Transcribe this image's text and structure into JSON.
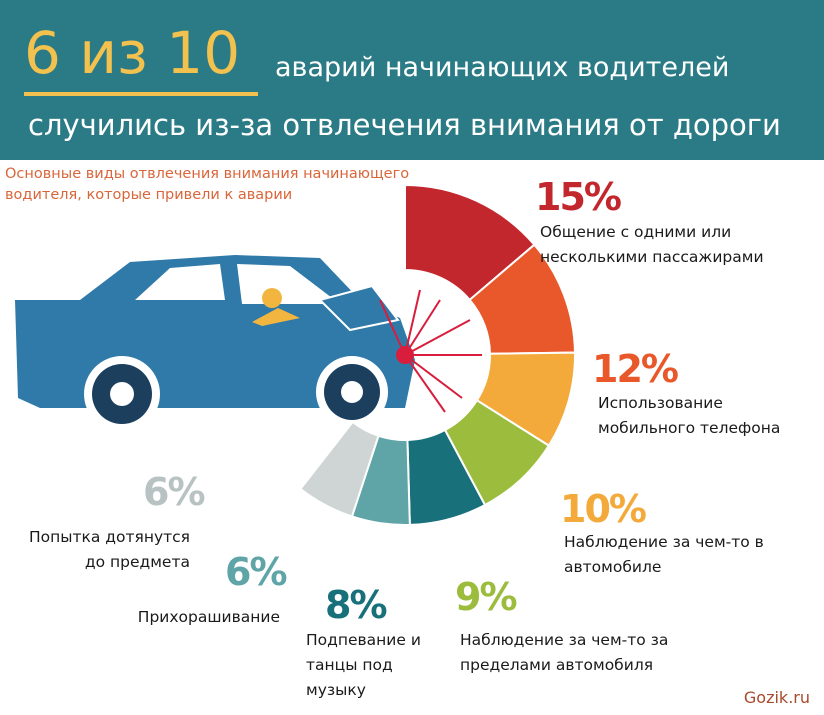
{
  "header": {
    "big_number": "6 из 10",
    "line1": "аварий начинающих водителей",
    "line2": "случились из-за отвлечения внимания от дороги"
  },
  "subtitle": "Основные виды отвлечения внимания начинающего водителя, которые привели к аварии",
  "watermark": "Gozik.ru",
  "chart_data": {
    "type": "pie",
    "title": "6 из 10 аварий начинающих водителей случились из-за отвлечения внимания от дороги",
    "categories": [
      [
        "Общение с одними или",
        "несколькими пассажирами"
      ],
      [
        "Использование",
        "мобильного телефона"
      ],
      [
        "Наблюдение за чем-то в",
        "автомобиле"
      ],
      [
        "Наблюдение за чем-то за",
        "пределами автомобиля"
      ],
      [
        "Подпевание и",
        "танцы под",
        "музыку"
      ],
      [
        "Прихорашивание"
      ],
      [
        "Попытка дотянутся",
        "до предмета"
      ]
    ],
    "values": [
      15,
      12,
      10,
      9,
      8,
      6,
      6
    ],
    "value_labels": [
      "15%",
      "12%",
      "10%",
      "9%",
      "8%",
      "6%",
      "6%"
    ],
    "colors": [
      "#c3272e",
      "#e8582a",
      "#f4a93b",
      "#9cbc3d",
      "#17707a",
      "#5fa5a8",
      "#cfd5d4"
    ]
  }
}
